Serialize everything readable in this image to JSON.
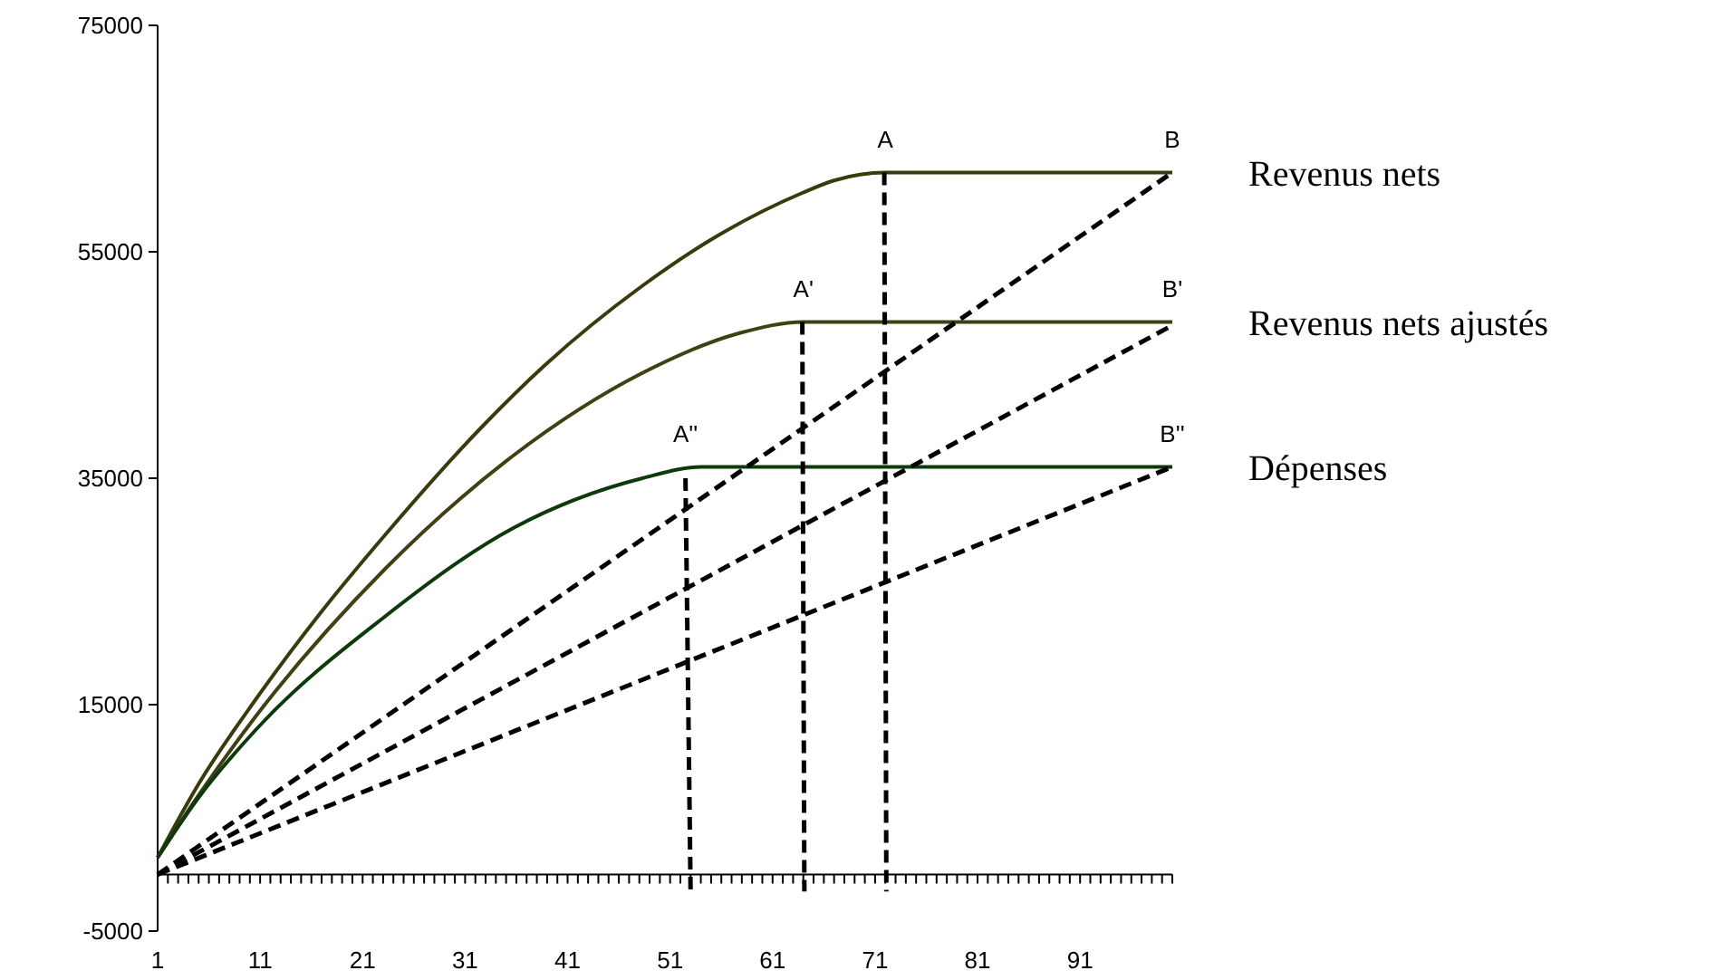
{
  "chart_data": {
    "type": "line",
    "xlim": [
      1,
      100
    ],
    "ylim": [
      -5000,
      75000
    ],
    "yticks": [
      -5000,
      15000,
      35000,
      55000,
      75000
    ],
    "xticks": [
      1,
      {
        "value": 2,
        "label": null
      },
      {
        "value": 3,
        "label": null
      },
      {
        "value": 4,
        "label": null
      },
      {
        "value": 5,
        "label": null
      },
      {
        "value": 6,
        "label": null
      },
      {
        "value": 7,
        "label": null
      },
      {
        "value": 8,
        "label": null
      },
      {
        "value": 9,
        "label": null
      },
      {
        "value": 10,
        "label": null
      },
      11,
      {
        "value": 12,
        "label": null
      },
      {
        "value": 13,
        "label": null
      },
      {
        "value": 14,
        "label": null
      },
      {
        "value": 15,
        "label": null
      },
      {
        "value": 16,
        "label": null
      },
      {
        "value": 17,
        "label": null
      },
      {
        "value": 18,
        "label": null
      },
      {
        "value": 19,
        "label": null
      },
      {
        "value": 20,
        "label": null
      },
      21,
      {
        "value": 22,
        "label": null
      },
      {
        "value": 23,
        "label": null
      },
      {
        "value": 24,
        "label": null
      },
      {
        "value": 25,
        "label": null
      },
      {
        "value": 26,
        "label": null
      },
      {
        "value": 27,
        "label": null
      },
      {
        "value": 28,
        "label": null
      },
      {
        "value": 29,
        "label": null
      },
      {
        "value": 30,
        "label": null
      },
      31,
      {
        "value": 32,
        "label": null
      },
      {
        "value": 33,
        "label": null
      },
      {
        "value": 34,
        "label": null
      },
      {
        "value": 35,
        "label": null
      },
      {
        "value": 36,
        "label": null
      },
      {
        "value": 37,
        "label": null
      },
      {
        "value": 38,
        "label": null
      },
      {
        "value": 39,
        "label": null
      },
      {
        "value": 40,
        "label": null
      },
      41,
      {
        "value": 42,
        "label": null
      },
      {
        "value": 43,
        "label": null
      },
      {
        "value": 44,
        "label": null
      },
      {
        "value": 45,
        "label": null
      },
      {
        "value": 46,
        "label": null
      },
      {
        "value": 47,
        "label": null
      },
      {
        "value": 48,
        "label": null
      },
      {
        "value": 49,
        "label": null
      },
      {
        "value": 50,
        "label": null
      },
      51,
      {
        "value": 52,
        "label": null
      },
      {
        "value": 53,
        "label": null
      },
      {
        "value": 54,
        "label": null
      },
      {
        "value": 55,
        "label": null
      },
      {
        "value": 56,
        "label": null
      },
      {
        "value": 57,
        "label": null
      },
      {
        "value": 58,
        "label": null
      },
      {
        "value": 59,
        "label": null
      },
      {
        "value": 60,
        "label": null
      },
      61,
      {
        "value": 62,
        "label": null
      },
      {
        "value": 63,
        "label": null
      },
      {
        "value": 64,
        "label": null
      },
      {
        "value": 65,
        "label": null
      },
      {
        "value": 66,
        "label": null
      },
      {
        "value": 67,
        "label": null
      },
      {
        "value": 68,
        "label": null
      },
      {
        "value": 69,
        "label": null
      },
      {
        "value": 70,
        "label": null
      },
      71,
      {
        "value": 72,
        "label": null
      },
      {
        "value": 73,
        "label": null
      },
      {
        "value": 74,
        "label": null
      },
      {
        "value": 75,
        "label": null
      },
      {
        "value": 76,
        "label": null
      },
      {
        "value": 77,
        "label": null
      },
      {
        "value": 78,
        "label": null
      },
      {
        "value": 79,
        "label": null
      },
      {
        "value": 80,
        "label": null
      },
      81,
      {
        "value": 82,
        "label": null
      },
      {
        "value": 83,
        "label": null
      },
      {
        "value": 84,
        "label": null
      },
      {
        "value": 85,
        "label": null
      },
      {
        "value": 86,
        "label": null
      },
      {
        "value": 87,
        "label": null
      },
      {
        "value": 88,
        "label": null
      },
      {
        "value": 89,
        "label": null
      },
      {
        "value": 90,
        "label": null
      },
      91,
      {
        "value": 92,
        "label": null
      },
      {
        "value": 93,
        "label": null
      },
      {
        "value": 94,
        "label": null
      },
      {
        "value": 95,
        "label": null
      },
      {
        "value": 96,
        "label": null
      },
      {
        "value": 97,
        "label": null
      },
      {
        "value": 98,
        "label": null
      },
      {
        "value": 99,
        "label": null
      },
      {
        "value": 100,
        "label": null
      }
    ],
    "series": [
      {
        "name": "Revenus nets",
        "type": "line",
        "color": "#3a3a0c",
        "line_style": "solid",
        "x": [
          1,
          5,
          10.6,
          16.8,
          23.2,
          32.6,
          38.8,
          48.3,
          54.5,
          63.9,
          67,
          72,
          100
        ],
        "values": [
          1500,
          8000,
          15500,
          23000,
          30000,
          39500,
          45000,
          52000,
          55800,
          60200,
          61300,
          62000,
          62000
        ]
      },
      {
        "name": "Revenus nets ajustés",
        "type": "line",
        "color": "#404012",
        "line_style": "solid",
        "x": [
          1,
          5,
          10.6,
          23.2,
          35.7,
          48.3,
          57.7,
          64,
          100
        ],
        "values": [
          1500,
          7000,
          14000,
          27000,
          37000,
          44300,
          47800,
          48800,
          48800
        ]
      },
      {
        "name": "Dépenses",
        "type": "line",
        "color": "#0c3a0c",
        "line_style": "solid",
        "x": [
          1,
          5,
          10.6,
          23.2,
          35.7,
          48.3,
          54,
          100
        ],
        "values": [
          1500,
          6800,
          12800,
          22800,
          30600,
          35000,
          36000,
          36000
        ]
      },
      {
        "type": "line",
        "color": "#000000",
        "line_style": "dashed",
        "x": [
          1,
          100
        ],
        "values": [
          0,
          62000
        ]
      },
      {
        "type": "line",
        "color": "#000000",
        "line_style": "dashed",
        "x": [
          1,
          100
        ],
        "values": [
          0,
          48500
        ]
      },
      {
        "type": "line",
        "color": "#000000",
        "line_style": "dashed",
        "x": [
          1,
          100
        ],
        "values": [
          0,
          36000
        ]
      },
      {
        "type": "line",
        "color": "#000000",
        "line_style": "dashed",
        "x": [
          71.9,
          72.1
        ],
        "values": [
          62000,
          -1500
        ]
      },
      {
        "type": "line",
        "color": "#000000",
        "line_style": "dashed",
        "x": [
          63.9,
          64.1
        ],
        "values": [
          48800,
          -1500
        ]
      },
      {
        "type": "line",
        "color": "#000000",
        "line_style": "dashed",
        "x": [
          52.5,
          53
        ],
        "values": [
          35000,
          -1500
        ]
      }
    ],
    "annotations": [
      {
        "text": "A",
        "x": 72,
        "y": 62000
      },
      {
        "text": "B",
        "x": 100,
        "y": 62000
      },
      {
        "text": "A'",
        "x": 64,
        "y": 48800
      },
      {
        "text": "B'",
        "x": 100,
        "y": 48800
      },
      {
        "text": "A''",
        "x": 52.5,
        "y": 36000
      },
      {
        "text": "B''",
        "x": 100,
        "y": 36000
      }
    ]
  }
}
